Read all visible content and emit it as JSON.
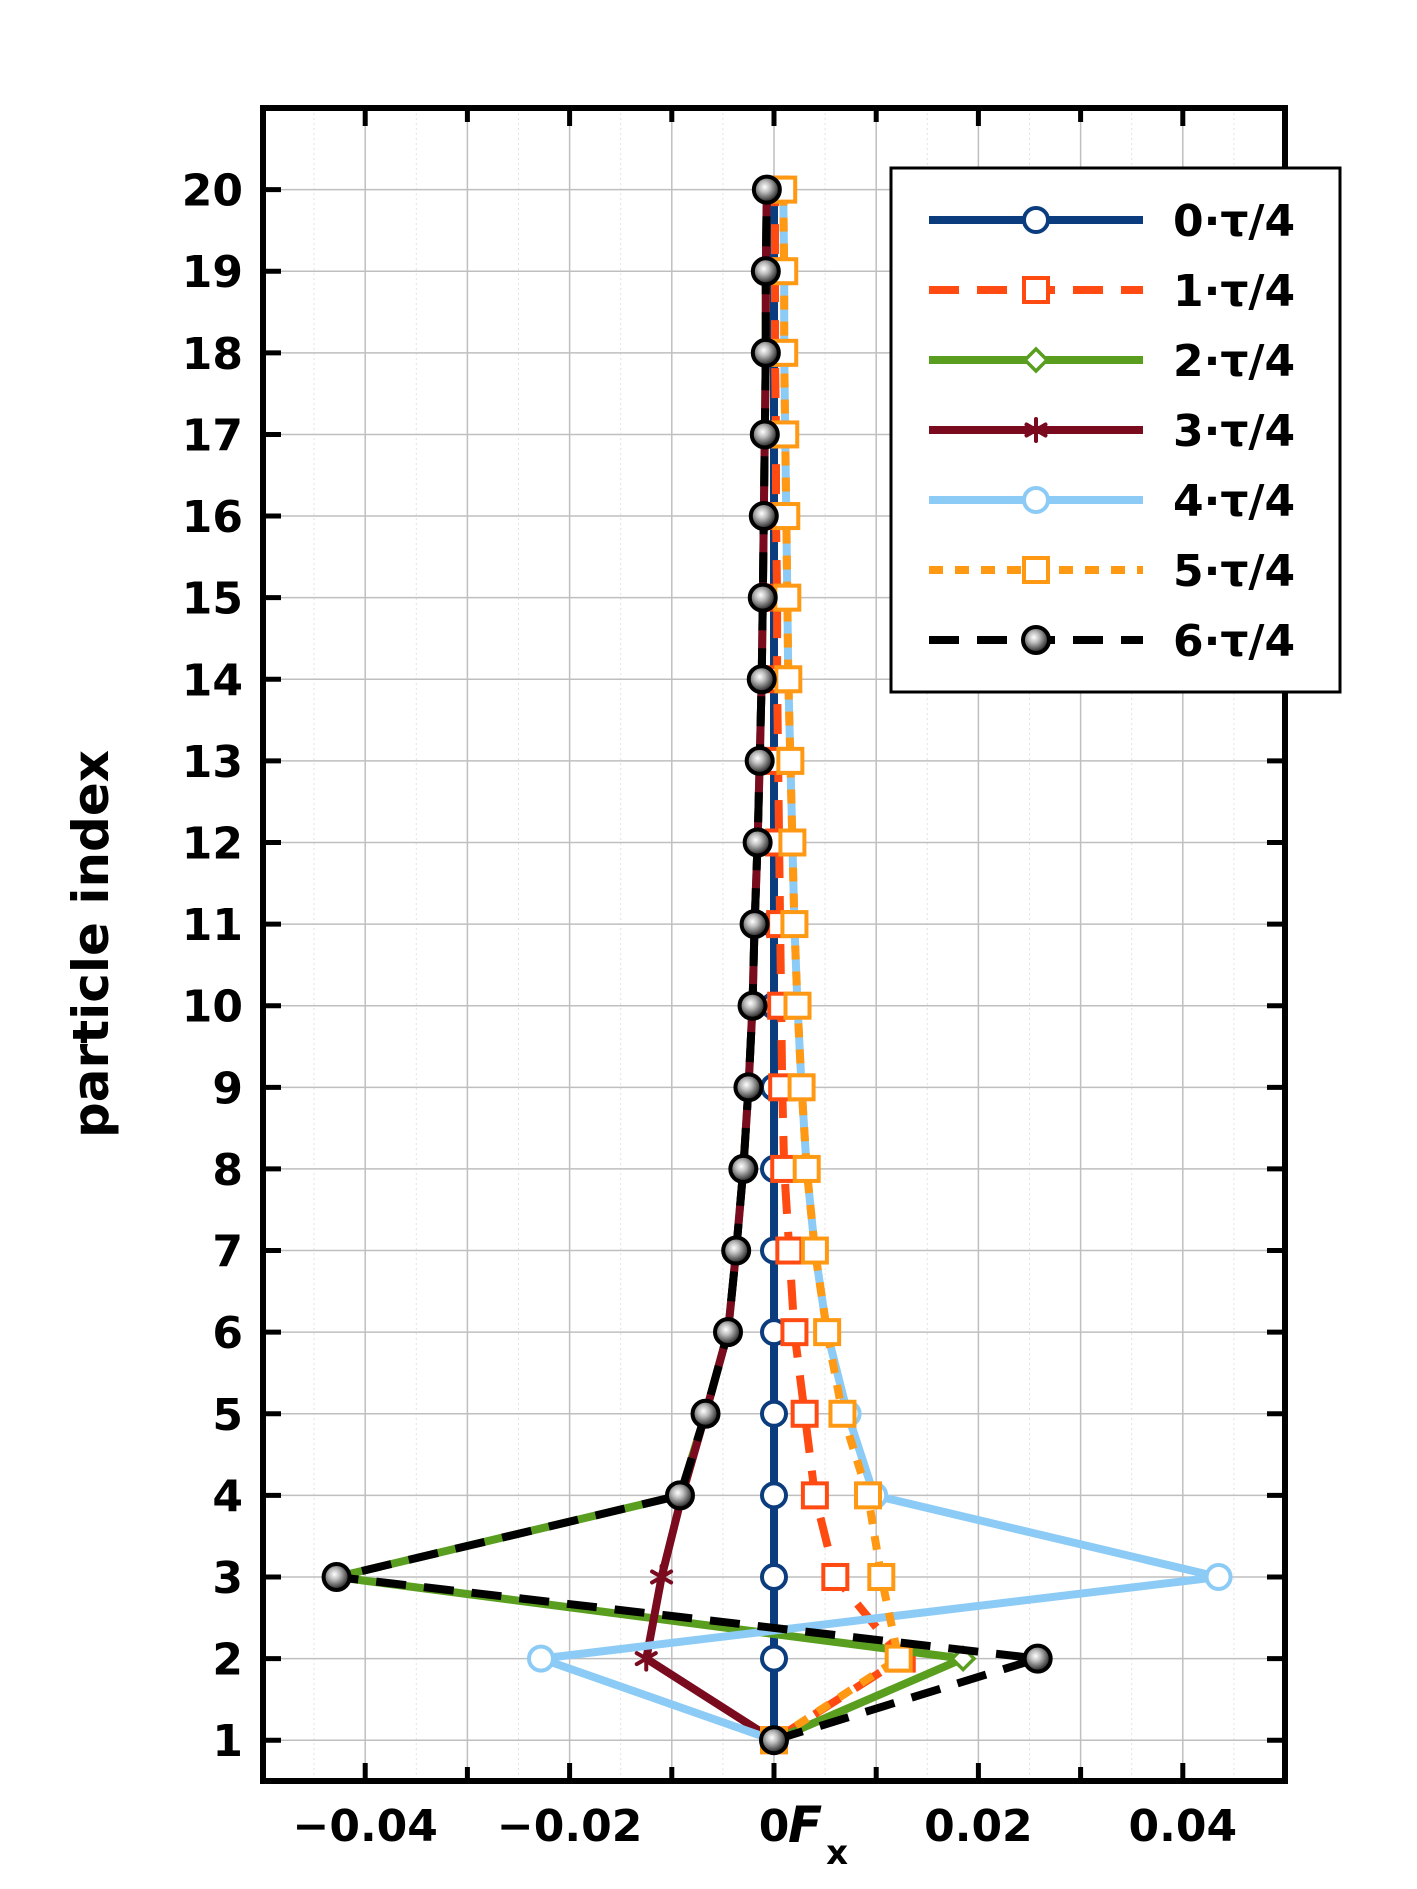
{
  "chart_data": {
    "type": "line",
    "title": "",
    "xlabel": "F",
    "xlabel_sub": "x",
    "ylabel": "particle index",
    "xlim": [
      -0.05,
      0.05
    ],
    "ylim": [
      0.5,
      21.0
    ],
    "xticks": [
      -0.04,
      -0.02,
      0,
      0.02,
      0.04
    ],
    "xtick_labels": [
      "−0.04",
      "−0.02",
      "0",
      "0.02",
      "0.04"
    ],
    "yticks": [
      1,
      2,
      3,
      4,
      5,
      6,
      7,
      8,
      9,
      10,
      11,
      12,
      13,
      14,
      15,
      16,
      17,
      18,
      19,
      20
    ],
    "ytick_labels": [
      "1",
      "2",
      "3",
      "4",
      "5",
      "6",
      "7",
      "8",
      "9",
      "10",
      "11",
      "12",
      "13",
      "14",
      "15",
      "16",
      "17",
      "18",
      "19",
      "20"
    ],
    "grid": true,
    "legend_position": "top-right",
    "y": [
      1,
      2,
      3,
      4,
      5,
      6,
      7,
      8,
      9,
      10,
      11,
      12,
      13,
      14,
      15,
      16,
      17,
      18,
      19,
      20
    ],
    "series": [
      {
        "name": "0·τ/4",
        "color": "#0b3d7e",
        "marker": "circle-open",
        "dash": "solid",
        "values": [
          0,
          0,
          0,
          0,
          0,
          0,
          0,
          0,
          0,
          0,
          0,
          0,
          0,
          0,
          0,
          0,
          0,
          0,
          0,
          0
        ]
      },
      {
        "name": "1·τ/4",
        "color": "#ff4a12",
        "marker": "square-open",
        "dash": "dashed",
        "values": [
          0,
          0.0125,
          0.006,
          0.004,
          0.003,
          0.002,
          0.0015,
          0.001,
          0.0008,
          0.0007,
          0.0006,
          0.0005,
          0.0004,
          0.0003,
          0.0003,
          0.0002,
          0.0002,
          0.0001,
          0.0001,
          0.0001
        ]
      },
      {
        "name": "2·τ/4",
        "color": "#5a9e1f",
        "marker": "diamond-open",
        "dash": "solid",
        "values": [
          0,
          0.0185,
          -0.0428,
          -0.0092,
          -0.0067,
          -0.0045,
          -0.0037,
          -0.003,
          -0.0025,
          -0.0021,
          -0.0019,
          -0.0016,
          -0.0014,
          -0.0012,
          -0.0011,
          -0.001,
          -0.0009,
          -0.0008,
          -0.0008,
          -0.0007
        ]
      },
      {
        "name": "3·τ/4",
        "color": "#7a0b1f",
        "marker": "asterisk",
        "dash": "solid",
        "values": [
          0,
          -0.0125,
          -0.011,
          -0.009,
          -0.0067,
          -0.0045,
          -0.0037,
          -0.003,
          -0.0025,
          -0.0021,
          -0.0019,
          -0.0016,
          -0.0014,
          -0.0012,
          -0.0011,
          -0.001,
          -0.0009,
          -0.0008,
          -0.0008,
          -0.0007
        ]
      },
      {
        "name": "4·τ/4",
        "color": "#8ccbf5",
        "marker": "circle-open",
        "dash": "solid",
        "values": [
          0,
          -0.0228,
          0.0435,
          0.0098,
          0.0072,
          0.0052,
          0.004,
          0.0032,
          0.0027,
          0.0023,
          0.002,
          0.0018,
          0.0016,
          0.0014,
          0.0013,
          0.0012,
          0.0011,
          0.001,
          0.001,
          0.0009
        ]
      },
      {
        "name": "5·τ/4",
        "color": "#ff9812",
        "marker": "square-open",
        "dash": "dotted",
        "values": [
          0,
          0.0122,
          0.0105,
          0.0092,
          0.0067,
          0.0052,
          0.004,
          0.0032,
          0.0027,
          0.0023,
          0.002,
          0.0018,
          0.0016,
          0.0014,
          0.0013,
          0.0012,
          0.0011,
          0.001,
          0.001,
          0.0009
        ]
      },
      {
        "name": "6·τ/4",
        "color": "#000000",
        "marker": "circle-filled-gradient",
        "dash": "dashed",
        "values": [
          0,
          0.0258,
          -0.0428,
          -0.0092,
          -0.0067,
          -0.0045,
          -0.0037,
          -0.003,
          -0.0025,
          -0.0021,
          -0.0019,
          -0.0016,
          -0.0014,
          -0.0012,
          -0.0011,
          -0.001,
          -0.0009,
          -0.0008,
          -0.0008,
          -0.0007
        ]
      }
    ]
  }
}
